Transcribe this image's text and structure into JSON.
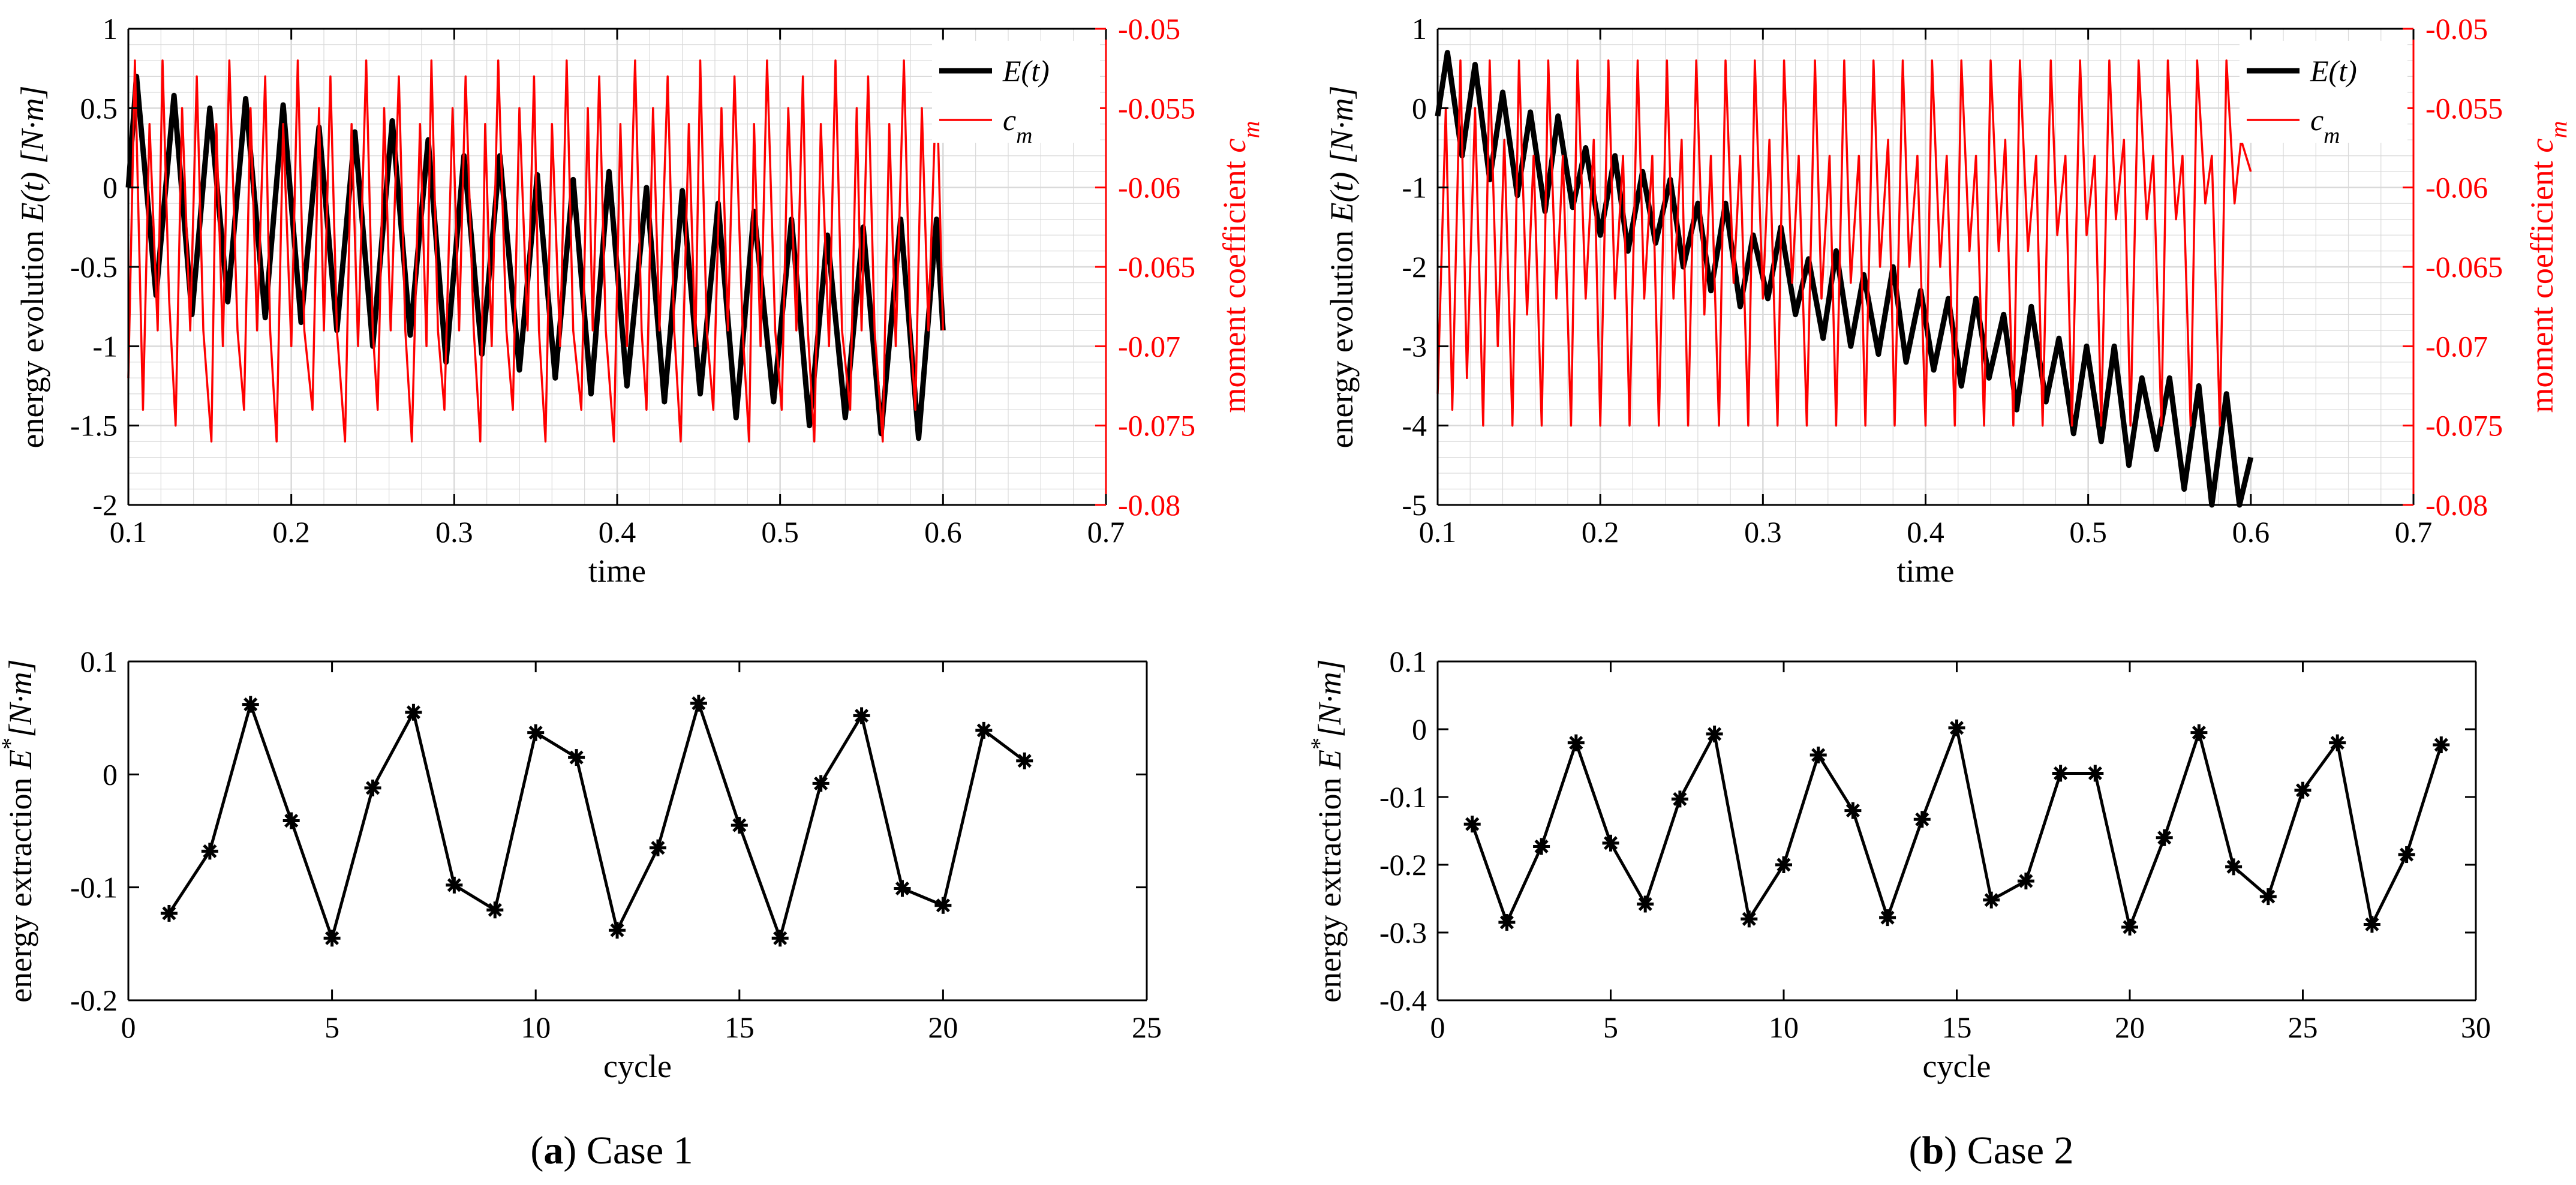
{
  "colors": {
    "black": "#000000",
    "red": "#ff0000",
    "grid": "#d9d9d9"
  },
  "captions": [
    {
      "label": "a",
      "text": " Case 1"
    },
    {
      "label": "b",
      "text": " Case 2"
    }
  ],
  "chart_data": [
    {
      "id": "a-top",
      "type": "line",
      "title": "",
      "xlabel": "time",
      "ylabel": "energy evolution E(t) [N·m]",
      "ylabel_right": "moment coefficient c_m",
      "xlim": [
        0.1,
        0.7
      ],
      "ylim": [
        -2,
        1
      ],
      "ylim_right": [
        -0.08,
        -0.05
      ],
      "x_ticks": [
        0.1,
        0.2,
        0.3,
        0.4,
        0.5,
        0.6,
        0.7
      ],
      "x_tick_labels": [
        "0.1",
        "0.2",
        "0.3",
        "0.4",
        "0.5",
        "0.6",
        "0.7"
      ],
      "y_ticks": [
        -2,
        -1.5,
        -1,
        -0.5,
        0,
        0.5,
        1
      ],
      "y_tick_labels": [
        "-2",
        "-1.5",
        "-1",
        "-0.5",
        "0",
        "0.5",
        "1"
      ],
      "y_ticks_right": [
        -0.08,
        -0.075,
        -0.07,
        -0.065,
        -0.06,
        -0.055,
        -0.05
      ],
      "y_tick_labels_right": [
        "-0.08",
        "-0.075",
        "-0.07",
        "-0.065",
        "-0.06",
        "-0.055",
        "-0.05"
      ],
      "grid": true,
      "legend": [
        "E(t)",
        "c_m"
      ],
      "legend_position": "top-right",
      "series": [
        {
          "name": "E(t)",
          "axis": "left",
          "color": "#000000",
          "x": [
            0.1,
            0.105,
            0.117,
            0.128,
            0.139,
            0.15,
            0.161,
            0.172,
            0.184,
            0.195,
            0.206,
            0.217,
            0.228,
            0.239,
            0.25,
            0.262,
            0.273,
            0.284,
            0.295,
            0.306,
            0.317,
            0.328,
            0.34,
            0.351,
            0.362,
            0.373,
            0.384,
            0.395,
            0.406,
            0.418,
            0.429,
            0.44,
            0.451,
            0.462,
            0.473,
            0.484,
            0.496,
            0.507,
            0.518,
            0.529,
            0.54,
            0.551,
            0.562,
            0.574,
            0.585,
            0.596,
            0.6
          ],
          "y": [
            0.0,
            0.7,
            -0.68,
            0.58,
            -0.8,
            0.5,
            -0.72,
            0.56,
            -0.82,
            0.52,
            -0.85,
            0.38,
            -0.9,
            0.35,
            -1.0,
            0.42,
            -0.93,
            0.3,
            -1.1,
            0.2,
            -1.05,
            0.2,
            -1.15,
            0.08,
            -1.2,
            0.05,
            -1.3,
            0.1,
            -1.25,
            0.0,
            -1.35,
            -0.02,
            -1.3,
            -0.1,
            -1.45,
            -0.15,
            -1.35,
            -0.2,
            -1.5,
            -0.3,
            -1.45,
            -0.25,
            -1.55,
            -0.2,
            -1.58,
            -0.2,
            -0.9
          ]
        },
        {
          "name": "c_m",
          "axis": "right",
          "color": "#ff0000",
          "x": [
            0.1,
            0.104,
            0.109,
            0.113,
            0.118,
            0.121,
            0.125,
            0.129,
            0.133,
            0.138,
            0.142,
            0.146,
            0.151,
            0.154,
            0.158,
            0.162,
            0.167,
            0.171,
            0.175,
            0.179,
            0.184,
            0.187,
            0.191,
            0.195,
            0.2,
            0.204,
            0.208,
            0.213,
            0.217,
            0.22,
            0.224,
            0.228,
            0.233,
            0.237,
            0.241,
            0.246,
            0.25,
            0.253,
            0.257,
            0.261,
            0.266,
            0.27,
            0.274,
            0.279,
            0.283,
            0.286,
            0.29,
            0.294,
            0.299,
            0.303,
            0.307,
            0.312,
            0.316,
            0.319,
            0.323,
            0.327,
            0.332,
            0.336,
            0.34,
            0.345,
            0.349,
            0.352,
            0.356,
            0.36,
            0.365,
            0.369,
            0.373,
            0.378,
            0.382,
            0.385,
            0.389,
            0.393,
            0.398,
            0.402,
            0.406,
            0.411,
            0.415,
            0.418,
            0.422,
            0.426,
            0.431,
            0.435,
            0.439,
            0.444,
            0.448,
            0.451,
            0.455,
            0.459,
            0.464,
            0.468,
            0.472,
            0.477,
            0.481,
            0.484,
            0.488,
            0.492,
            0.497,
            0.501,
            0.505,
            0.51,
            0.514,
            0.517,
            0.521,
            0.525,
            0.53,
            0.534,
            0.538,
            0.543,
            0.547,
            0.55,
            0.554,
            0.558,
            0.563,
            0.567,
            0.571,
            0.576,
            0.58,
            0.583,
            0.587,
            0.591,
            0.596,
            0.6
          ],
          "y": [
            -0.072,
            -0.052,
            -0.074,
            -0.056,
            -0.069,
            -0.052,
            -0.067,
            -0.075,
            -0.055,
            -0.069,
            -0.053,
            -0.069,
            -0.076,
            -0.056,
            -0.07,
            -0.052,
            -0.069,
            -0.074,
            -0.055,
            -0.069,
            -0.053,
            -0.069,
            -0.076,
            -0.056,
            -0.07,
            -0.052,
            -0.069,
            -0.074,
            -0.055,
            -0.069,
            -0.053,
            -0.069,
            -0.076,
            -0.056,
            -0.07,
            -0.052,
            -0.069,
            -0.074,
            -0.055,
            -0.069,
            -0.053,
            -0.069,
            -0.076,
            -0.056,
            -0.07,
            -0.052,
            -0.069,
            -0.074,
            -0.055,
            -0.069,
            -0.053,
            -0.069,
            -0.076,
            -0.056,
            -0.07,
            -0.052,
            -0.069,
            -0.074,
            -0.055,
            -0.069,
            -0.053,
            -0.069,
            -0.076,
            -0.056,
            -0.07,
            -0.052,
            -0.069,
            -0.074,
            -0.055,
            -0.069,
            -0.053,
            -0.069,
            -0.076,
            -0.056,
            -0.07,
            -0.052,
            -0.069,
            -0.074,
            -0.055,
            -0.069,
            -0.053,
            -0.069,
            -0.076,
            -0.056,
            -0.07,
            -0.052,
            -0.069,
            -0.074,
            -0.055,
            -0.069,
            -0.053,
            -0.069,
            -0.076,
            -0.056,
            -0.07,
            -0.052,
            -0.069,
            -0.074,
            -0.055,
            -0.069,
            -0.053,
            -0.069,
            -0.076,
            -0.056,
            -0.07,
            -0.052,
            -0.069,
            -0.074,
            -0.055,
            -0.069,
            -0.053,
            -0.069,
            -0.076,
            -0.056,
            -0.07,
            -0.052,
            -0.069,
            -0.074,
            -0.055,
            -0.069,
            -0.053,
            -0.069
          ]
        }
      ]
    },
    {
      "id": "a-bottom",
      "type": "line",
      "xlabel": "cycle",
      "ylabel": "energy extraction E* [N·m]",
      "xlim": [
        0,
        25
      ],
      "ylim": [
        -0.2,
        0.1
      ],
      "x_ticks": [
        0,
        5,
        10,
        15,
        20,
        25
      ],
      "x_tick_labels": [
        "0",
        "5",
        "10",
        "15",
        "20",
        "25"
      ],
      "y_ticks": [
        -0.2,
        -0.1,
        0,
        0.1
      ],
      "y_tick_labels": [
        "-0.2",
        "-0.1",
        "0",
        "0.1"
      ],
      "grid": false,
      "marker": "asterisk",
      "series": [
        {
          "name": "E*",
          "x": [
            1,
            2,
            3,
            4,
            5,
            6,
            7,
            8,
            9,
            10,
            11,
            12,
            13,
            14,
            15,
            16,
            17,
            18,
            19,
            20,
            21,
            22
          ],
          "y": [
            -0.123,
            -0.068,
            0.062,
            -0.041,
            -0.145,
            -0.012,
            0.055,
            -0.098,
            -0.12,
            0.037,
            0.015,
            -0.138,
            -0.065,
            0.063,
            -0.045,
            -0.145,
            -0.008,
            0.052,
            -0.101,
            -0.116,
            0.039,
            0.012
          ]
        }
      ]
    },
    {
      "id": "b-top",
      "type": "line",
      "xlabel": "time",
      "ylabel": "energy evolution E(t) [N·m]",
      "ylabel_right": "moment coefficient c_m",
      "xlim": [
        0.1,
        0.7
      ],
      "ylim": [
        -5,
        1
      ],
      "ylim_right": [
        -0.08,
        -0.05
      ],
      "x_ticks": [
        0.1,
        0.2,
        0.3,
        0.4,
        0.5,
        0.6,
        0.7
      ],
      "x_tick_labels": [
        "0.1",
        "0.2",
        "0.3",
        "0.4",
        "0.5",
        "0.6",
        "0.7"
      ],
      "y_ticks": [
        -5,
        -4,
        -3,
        -2,
        -1,
        0,
        1
      ],
      "y_tick_labels": [
        "-5",
        "-4",
        "-3",
        "-2",
        "-1",
        "0",
        "1"
      ],
      "y_ticks_right": [
        -0.08,
        -0.075,
        -0.07,
        -0.065,
        -0.06,
        -0.055,
        -0.05
      ],
      "y_tick_labels_right": [
        "-0.08",
        "-0.075",
        "-0.07",
        "-0.065",
        "-0.06",
        "-0.055",
        "-0.05"
      ],
      "grid": true,
      "legend": [
        "E(t)",
        "c_m"
      ],
      "legend_position": "top-right",
      "series": [
        {
          "name": "E(t)",
          "axis": "left",
          "color": "#000000",
          "x": [
            0.1,
            0.106,
            0.115,
            0.123,
            0.132,
            0.14,
            0.149,
            0.157,
            0.166,
            0.174,
            0.183,
            0.191,
            0.2,
            0.209,
            0.217,
            0.226,
            0.234,
            0.243,
            0.251,
            0.26,
            0.268,
            0.277,
            0.286,
            0.294,
            0.303,
            0.311,
            0.32,
            0.328,
            0.337,
            0.345,
            0.354,
            0.362,
            0.371,
            0.38,
            0.388,
            0.397,
            0.405,
            0.414,
            0.422,
            0.431,
            0.439,
            0.448,
            0.456,
            0.465,
            0.474,
            0.482,
            0.491,
            0.499,
            0.508,
            0.516,
            0.525,
            0.533,
            0.542,
            0.55,
            0.559,
            0.568,
            0.576,
            0.585,
            0.593,
            0.6
          ],
          "y": [
            -0.1,
            0.7,
            -0.6,
            0.55,
            -0.9,
            0.2,
            -1.1,
            -0.05,
            -1.3,
            -0.1,
            -1.25,
            -0.5,
            -1.6,
            -0.6,
            -1.8,
            -0.8,
            -1.7,
            -0.9,
            -2.0,
            -1.2,
            -2.3,
            -1.2,
            -2.5,
            -1.6,
            -2.4,
            -1.5,
            -2.6,
            -1.9,
            -2.9,
            -1.8,
            -3.0,
            -2.1,
            -3.1,
            -2.0,
            -3.2,
            -2.3,
            -3.3,
            -2.4,
            -3.5,
            -2.4,
            -3.4,
            -2.6,
            -3.8,
            -2.5,
            -3.7,
            -2.9,
            -4.1,
            -3.0,
            -4.2,
            -3.0,
            -4.5,
            -3.4,
            -4.3,
            -3.4,
            -4.8,
            -3.5,
            -5.0,
            -3.6,
            -5.0,
            -4.4
          ]
        },
        {
          "name": "c_m",
          "axis": "right",
          "color": "#ff0000",
          "x": [
            0.1,
            0.105,
            0.109,
            0.114,
            0.118,
            0.123,
            0.128,
            0.132,
            0.137,
            0.141,
            0.146,
            0.15,
            0.155,
            0.159,
            0.164,
            0.168,
            0.173,
            0.177,
            0.182,
            0.186,
            0.191,
            0.196,
            0.2,
            0.205,
            0.209,
            0.214,
            0.218,
            0.223,
            0.227,
            0.232,
            0.236,
            0.241,
            0.245,
            0.25,
            0.254,
            0.259,
            0.264,
            0.268,
            0.273,
            0.277,
            0.282,
            0.286,
            0.291,
            0.295,
            0.3,
            0.304,
            0.309,
            0.313,
            0.318,
            0.322,
            0.327,
            0.332,
            0.336,
            0.341,
            0.345,
            0.35,
            0.354,
            0.359,
            0.363,
            0.368,
            0.372,
            0.377,
            0.381,
            0.386,
            0.39,
            0.395,
            0.4,
            0.404,
            0.409,
            0.413,
            0.418,
            0.422,
            0.427,
            0.431,
            0.436,
            0.44,
            0.445,
            0.449,
            0.454,
            0.458,
            0.463,
            0.468,
            0.472,
            0.477,
            0.481,
            0.486,
            0.49,
            0.495,
            0.499,
            0.504,
            0.508,
            0.513,
            0.517,
            0.522,
            0.526,
            0.531,
            0.536,
            0.54,
            0.545,
            0.549,
            0.554,
            0.558,
            0.563,
            0.567,
            0.572,
            0.576,
            0.581,
            0.585,
            0.59,
            0.594,
            0.6
          ],
          "y": [
            -0.073,
            -0.055,
            -0.074,
            -0.052,
            -0.072,
            -0.055,
            -0.075,
            -0.052,
            -0.07,
            -0.057,
            -0.075,
            -0.052,
            -0.068,
            -0.058,
            -0.075,
            -0.052,
            -0.067,
            -0.058,
            -0.075,
            -0.052,
            -0.067,
            -0.057,
            -0.075,
            -0.052,
            -0.067,
            -0.058,
            -0.075,
            -0.052,
            -0.067,
            -0.058,
            -0.075,
            -0.052,
            -0.067,
            -0.057,
            -0.075,
            -0.052,
            -0.068,
            -0.058,
            -0.075,
            -0.052,
            -0.066,
            -0.058,
            -0.075,
            -0.052,
            -0.067,
            -0.057,
            -0.075,
            -0.052,
            -0.066,
            -0.058,
            -0.075,
            -0.052,
            -0.067,
            -0.058,
            -0.075,
            -0.052,
            -0.066,
            -0.058,
            -0.075,
            -0.052,
            -0.065,
            -0.057,
            -0.075,
            -0.052,
            -0.065,
            -0.058,
            -0.075,
            -0.052,
            -0.065,
            -0.058,
            -0.075,
            -0.052,
            -0.064,
            -0.058,
            -0.075,
            -0.052,
            -0.064,
            -0.057,
            -0.075,
            -0.052,
            -0.064,
            -0.058,
            -0.075,
            -0.052,
            -0.063,
            -0.058,
            -0.075,
            -0.052,
            -0.063,
            -0.058,
            -0.075,
            -0.052,
            -0.062,
            -0.057,
            -0.075,
            -0.052,
            -0.062,
            -0.058,
            -0.075,
            -0.052,
            -0.062,
            -0.058,
            -0.075,
            -0.052,
            -0.061,
            -0.058,
            -0.075,
            -0.052,
            -0.061,
            -0.057,
            -0.059
          ]
        }
      ]
    },
    {
      "id": "b-bottom",
      "type": "line",
      "xlabel": "cycle",
      "ylabel": "energy extraction E* [N·m]",
      "xlim": [
        0,
        30
      ],
      "ylim": [
        -0.4,
        0.1
      ],
      "x_ticks": [
        0,
        5,
        10,
        15,
        20,
        25,
        30
      ],
      "x_tick_labels": [
        "0",
        "5",
        "10",
        "15",
        "20",
        "25",
        "30"
      ],
      "y_ticks": [
        -0.4,
        -0.3,
        -0.2,
        -0.1,
        0,
        0.1
      ],
      "y_tick_labels": [
        "-0.4",
        "-0.3",
        "-0.2",
        "-0.1",
        "0",
        "0.1"
      ],
      "grid": false,
      "marker": "asterisk",
      "series": [
        {
          "name": "E*",
          "x": [
            1,
            2,
            3,
            4,
            5,
            6,
            7,
            8,
            9,
            10,
            11,
            12,
            13,
            14,
            15,
            16,
            17,
            18,
            19,
            20,
            21,
            22,
            23,
            24,
            25,
            26,
            27,
            28,
            29
          ],
          "y": [
            -0.14,
            -0.285,
            -0.173,
            -0.02,
            -0.168,
            -0.258,
            -0.103,
            -0.007,
            -0.28,
            -0.2,
            -0.038,
            -0.12,
            -0.278,
            -0.133,
            0.002,
            -0.252,
            -0.224,
            -0.065,
            -0.065,
            -0.292,
            -0.16,
            -0.005,
            -0.203,
            -0.247,
            -0.09,
            -0.02,
            -0.288,
            -0.185,
            -0.023
          ]
        }
      ]
    }
  ]
}
